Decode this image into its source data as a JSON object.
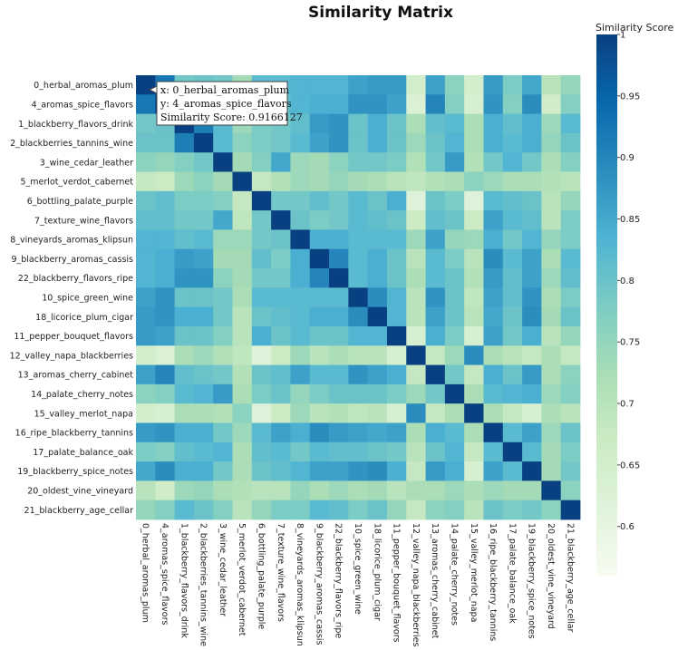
{
  "chart_data": {
    "type": "heatmap",
    "title": "Similarity Matrix",
    "colorbar_title": "Similarity Score",
    "colorscale": [
      "#f7fcf0",
      "#e0f3db",
      "#ccebc5",
      "#a8ddb5",
      "#7bccc4",
      "#4eb3d3",
      "#2b8cbe",
      "#0868ac",
      "#084081"
    ],
    "zmin": 0.56,
    "zmax": 1.0,
    "colorbar_ticks": [
      {
        "value": 1.0,
        "label": "1"
      },
      {
        "value": 0.95,
        "label": "0.95"
      },
      {
        "value": 0.9,
        "label": "0.9"
      },
      {
        "value": 0.85,
        "label": "0.85"
      },
      {
        "value": 0.8,
        "label": "0.8"
      },
      {
        "value": 0.75,
        "label": "0.75"
      },
      {
        "value": 0.7,
        "label": "0.7"
      },
      {
        "value": 0.65,
        "label": "0.65"
      },
      {
        "value": 0.6,
        "label": "0.6"
      }
    ],
    "labels": [
      "0_herbal_aromas_plum",
      "4_aromas_spice_flavors",
      "1_blackberry_flavors_drink",
      "2_blackberries_tannins_wine",
      "3_wine_cedar_leather",
      "5_merlot_verdot_cabernet",
      "6_bottling_palate_purple",
      "7_texture_wine_flavors",
      "8_vineyards_aromas_klipsun",
      "9_blackberry_aromas_cassis",
      "22_blackberry_flavors_ripe",
      "10_spice_green_wine",
      "18_licorice_plum_cigar",
      "11_pepper_bouquet_flavors",
      "12_valley_napa_blackberries",
      "13_aromas_cherry_cabinet",
      "14_palate_cherry_notes",
      "15_valley_merlot_napa",
      "16_ripe_blackberry_tannins",
      "17_palate_balance_oak",
      "19_blackberry_spice_notes",
      "20_oldest_vine_vineyard",
      "21_blackberry_age_cellar"
    ],
    "z": [
      [
        1.0,
        0.92,
        0.79,
        0.8,
        0.79,
        0.73,
        0.82,
        0.82,
        0.83,
        0.83,
        0.83,
        0.86,
        0.87,
        0.87,
        0.65,
        0.86,
        0.76,
        0.65,
        0.87,
        0.78,
        0.85,
        0.7,
        0.75
      ],
      [
        0.92,
        1.0,
        0.8,
        0.8,
        0.81,
        0.72,
        0.82,
        0.81,
        0.83,
        0.84,
        0.84,
        0.88,
        0.88,
        0.86,
        0.63,
        0.9,
        0.77,
        0.64,
        0.88,
        0.77,
        0.89,
        0.66,
        0.77
      ],
      [
        0.79,
        0.8,
        1.0,
        0.91,
        0.82,
        0.74,
        0.78,
        0.79,
        0.81,
        0.87,
        0.88,
        0.8,
        0.84,
        0.8,
        0.72,
        0.81,
        0.82,
        0.72,
        0.84,
        0.81,
        0.84,
        0.74,
        0.82
      ],
      [
        0.8,
        0.8,
        0.91,
        1.0,
        0.82,
        0.76,
        0.78,
        0.79,
        0.82,
        0.86,
        0.88,
        0.8,
        0.84,
        0.8,
        0.74,
        0.8,
        0.83,
        0.72,
        0.84,
        0.82,
        0.84,
        0.75,
        0.8
      ],
      [
        0.76,
        0.75,
        0.77,
        0.79,
        1.0,
        0.73,
        0.77,
        0.85,
        0.74,
        0.73,
        0.76,
        0.79,
        0.79,
        0.78,
        0.71,
        0.79,
        0.87,
        0.71,
        0.79,
        0.83,
        0.79,
        0.72,
        0.77
      ],
      [
        0.68,
        0.67,
        0.74,
        0.76,
        0.73,
        1.0,
        0.68,
        0.71,
        0.74,
        0.73,
        0.75,
        0.73,
        0.72,
        0.7,
        0.69,
        0.71,
        0.72,
        0.76,
        0.74,
        0.72,
        0.72,
        0.71,
        0.7
      ],
      [
        0.8,
        0.81,
        0.78,
        0.78,
        0.77,
        0.68,
        1.0,
        0.79,
        0.79,
        0.81,
        0.79,
        0.82,
        0.8,
        0.84,
        0.62,
        0.8,
        0.78,
        0.62,
        0.82,
        0.81,
        0.8,
        0.7,
        0.75
      ],
      [
        0.81,
        0.81,
        0.79,
        0.79,
        0.85,
        0.69,
        0.79,
        1.0,
        0.8,
        0.78,
        0.79,
        0.82,
        0.81,
        0.8,
        0.67,
        0.81,
        0.8,
        0.67,
        0.86,
        0.82,
        0.81,
        0.7,
        0.78
      ],
      [
        0.83,
        0.83,
        0.81,
        0.82,
        0.74,
        0.74,
        0.79,
        0.8,
        1.0,
        0.84,
        0.84,
        0.82,
        0.82,
        0.82,
        0.74,
        0.86,
        0.75,
        0.74,
        0.84,
        0.79,
        0.83,
        0.75,
        0.78
      ],
      [
        0.83,
        0.84,
        0.87,
        0.86,
        0.73,
        0.73,
        0.81,
        0.78,
        0.84,
        1.0,
        0.9,
        0.82,
        0.84,
        0.8,
        0.7,
        0.82,
        0.78,
        0.7,
        0.89,
        0.82,
        0.86,
        0.72,
        0.82
      ],
      [
        0.83,
        0.84,
        0.88,
        0.88,
        0.76,
        0.73,
        0.79,
        0.79,
        0.84,
        0.9,
        1.0,
        0.82,
        0.84,
        0.8,
        0.72,
        0.82,
        0.8,
        0.71,
        0.87,
        0.81,
        0.86,
        0.74,
        0.81
      ],
      [
        0.86,
        0.88,
        0.8,
        0.8,
        0.79,
        0.72,
        0.82,
        0.82,
        0.82,
        0.82,
        0.82,
        1.0,
        0.89,
        0.83,
        0.7,
        0.88,
        0.8,
        0.69,
        0.86,
        0.81,
        0.88,
        0.72,
        0.78
      ],
      [
        0.87,
        0.88,
        0.84,
        0.84,
        0.79,
        0.7,
        0.8,
        0.81,
        0.82,
        0.84,
        0.84,
        0.89,
        1.0,
        0.83,
        0.7,
        0.86,
        0.8,
        0.7,
        0.85,
        0.8,
        0.89,
        0.73,
        0.8
      ],
      [
        0.87,
        0.86,
        0.8,
        0.8,
        0.77,
        0.7,
        0.84,
        0.8,
        0.82,
        0.8,
        0.8,
        0.83,
        0.83,
        1.0,
        0.64,
        0.84,
        0.78,
        0.64,
        0.86,
        0.79,
        0.84,
        0.7,
        0.75
      ],
      [
        0.65,
        0.63,
        0.72,
        0.74,
        0.71,
        0.69,
        0.62,
        0.67,
        0.74,
        0.7,
        0.72,
        0.7,
        0.7,
        0.64,
        1.0,
        0.68,
        0.74,
        0.89,
        0.72,
        0.7,
        0.68,
        0.72,
        0.68
      ],
      [
        0.86,
        0.9,
        0.81,
        0.8,
        0.79,
        0.71,
        0.8,
        0.81,
        0.86,
        0.82,
        0.82,
        0.88,
        0.86,
        0.84,
        0.68,
        1.0,
        0.79,
        0.68,
        0.84,
        0.8,
        0.87,
        0.72,
        0.76
      ],
      [
        0.76,
        0.77,
        0.82,
        0.83,
        0.87,
        0.72,
        0.78,
        0.8,
        0.75,
        0.78,
        0.8,
        0.8,
        0.8,
        0.78,
        0.74,
        0.79,
        1.0,
        0.72,
        0.82,
        0.83,
        0.84,
        0.74,
        0.77
      ],
      [
        0.65,
        0.64,
        0.72,
        0.72,
        0.71,
        0.76,
        0.62,
        0.67,
        0.74,
        0.7,
        0.71,
        0.69,
        0.7,
        0.64,
        0.89,
        0.68,
        0.72,
        1.0,
        0.72,
        0.68,
        0.64,
        0.72,
        0.7
      ],
      [
        0.87,
        0.88,
        0.84,
        0.84,
        0.79,
        0.74,
        0.82,
        0.86,
        0.84,
        0.89,
        0.87,
        0.86,
        0.85,
        0.86,
        0.72,
        0.84,
        0.82,
        0.72,
        1.0,
        0.82,
        0.86,
        0.74,
        0.8
      ],
      [
        0.78,
        0.77,
        0.81,
        0.82,
        0.83,
        0.72,
        0.81,
        0.82,
        0.79,
        0.82,
        0.81,
        0.81,
        0.8,
        0.79,
        0.7,
        0.8,
        0.83,
        0.68,
        0.82,
        1.0,
        0.82,
        0.73,
        0.78
      ],
      [
        0.85,
        0.89,
        0.84,
        0.84,
        0.79,
        0.72,
        0.8,
        0.81,
        0.83,
        0.86,
        0.86,
        0.88,
        0.89,
        0.84,
        0.68,
        0.87,
        0.84,
        0.64,
        0.86,
        0.82,
        1.0,
        0.73,
        0.79
      ],
      [
        0.7,
        0.66,
        0.74,
        0.75,
        0.72,
        0.71,
        0.7,
        0.7,
        0.75,
        0.72,
        0.74,
        0.72,
        0.73,
        0.7,
        0.72,
        0.72,
        0.74,
        0.72,
        0.74,
        0.73,
        0.73,
        1.0,
        0.76
      ],
      [
        0.75,
        0.77,
        0.82,
        0.8,
        0.77,
        0.7,
        0.75,
        0.78,
        0.78,
        0.82,
        0.81,
        0.78,
        0.8,
        0.75,
        0.68,
        0.76,
        0.77,
        0.7,
        0.8,
        0.78,
        0.79,
        0.76,
        1.0
      ]
    ],
    "tooltip": {
      "x_line": "x: 0_herbal_aromas_plum",
      "y_line": "y: 4_aromas_spice_flavors",
      "z_line": "Similarity Score: 0.9166127"
    }
  }
}
